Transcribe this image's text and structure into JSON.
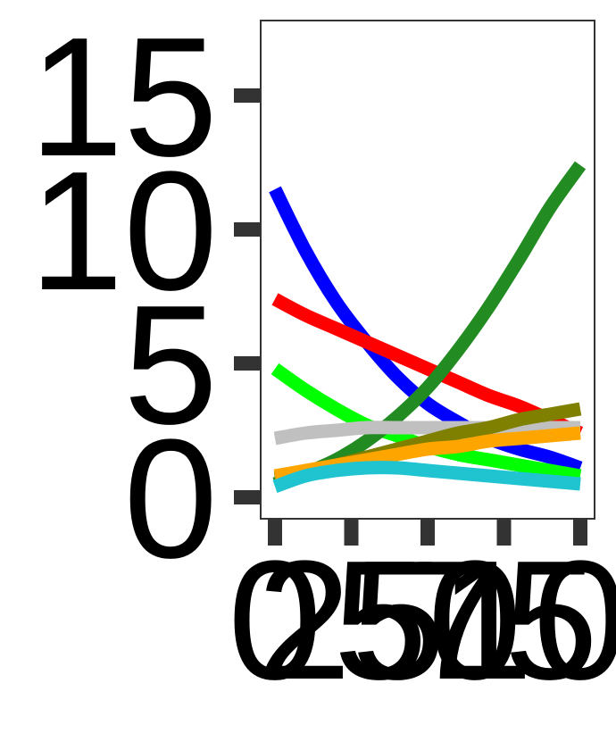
{
  "chart_data": {
    "type": "line",
    "title": "",
    "xlabel": "",
    "ylabel": "",
    "xlim": [
      0,
      100
    ],
    "ylim": [
      -0.8,
      17.8
    ],
    "x_ticks": [
      0,
      25,
      50,
      75,
      100
    ],
    "x_tick_labels": [
      "0",
      "25",
      "50",
      "75",
      "100"
    ],
    "y_ticks": [
      0,
      5,
      10,
      15
    ],
    "y_tick_labels": [
      "0",
      "5",
      "10",
      "15"
    ],
    "grid": false,
    "legend": "none",
    "x": [
      0,
      10,
      20,
      30,
      40,
      50,
      60,
      70,
      80,
      90,
      100
    ],
    "series": [
      {
        "color": "#0000FF",
        "values": [
          11.5,
          9.2,
          7.3,
          5.8,
          4.5,
          3.5,
          2.8,
          2.2,
          1.8,
          1.5,
          1.1
        ]
      },
      {
        "color": "#FF0000",
        "values": [
          7.4,
          6.8,
          6.3,
          5.8,
          5.3,
          4.8,
          4.3,
          3.8,
          3.4,
          2.9,
          2.4
        ]
      },
      {
        "color": "#00FF00",
        "values": [
          4.8,
          4.0,
          3.3,
          2.7,
          2.3,
          1.9,
          1.6,
          1.4,
          1.2,
          1.0,
          0.8
        ]
      },
      {
        "color": "#228B22",
        "values": [
          0.5,
          0.9,
          1.4,
          2.1,
          3.0,
          4.1,
          5.5,
          7.1,
          8.9,
          10.8,
          12.4
        ]
      },
      {
        "color": "#C0C0C0",
        "values": [
          2.2,
          2.4,
          2.5,
          2.6,
          2.6,
          2.6,
          2.6,
          2.6,
          2.6,
          2.6,
          2.6
        ]
      },
      {
        "color": "#808000",
        "values": [
          0.7,
          0.9,
          1.2,
          1.5,
          1.8,
          2.1,
          2.4,
          2.6,
          2.9,
          3.1,
          3.3
        ]
      },
      {
        "color": "#FFA500",
        "values": [
          0.8,
          1.0,
          1.2,
          1.4,
          1.6,
          1.8,
          1.9,
          2.1,
          2.2,
          2.3,
          2.4
        ]
      },
      {
        "color": "#20C4D0",
        "values": [
          0.4,
          0.8,
          1.0,
          1.1,
          1.1,
          1.0,
          0.9,
          0.8,
          0.7,
          0.6,
          0.5
        ]
      }
    ]
  }
}
